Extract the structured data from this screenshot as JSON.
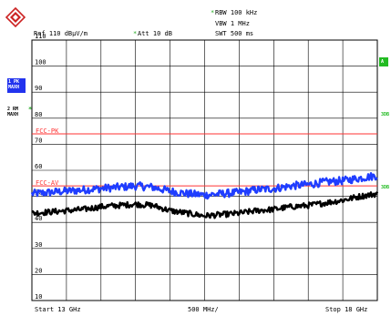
{
  "logo_text": "R&S",
  "header": {
    "rbw": "RBW 100 kHz",
    "vbw": "VBW 1 MHz",
    "swt": "SWT 500 ms",
    "ref": "Ref  110 dBµV/m",
    "att": "Att  10 dB",
    "rbw_marker": "*",
    "att_marker": "*"
  },
  "side": {
    "trace1_box": "1 PK MAXH",
    "trace2_label": "2 RM MAXH",
    "trace2_star": "*",
    "right_a": "A",
    "right_3db": "3DB",
    "right_3db_2": "3DB"
  },
  "footer": {
    "start": "Start 13 GHz",
    "span": "500 MHz/",
    "stop": "Stop 18 GHz"
  },
  "chart_data": {
    "type": "line",
    "title": "",
    "xlabel": "",
    "ylabel": "",
    "xlim": [
      13,
      18
    ],
    "ylim": [
      10,
      110
    ],
    "x_unit": "GHz",
    "y_unit": "dBµV/m",
    "grid": true,
    "ytick_labels": [
      "110",
      "100",
      "90",
      "80",
      "70",
      "60",
      "50",
      "40",
      "30",
      "20",
      "10"
    ],
    "limit_lines": [
      {
        "name": "FCC-PK",
        "value": 74,
        "color": "#ff3333"
      },
      {
        "name": "FCC-AV",
        "value": 54,
        "color": "#ff3333"
      }
    ],
    "series": [
      {
        "color": "#1f3dff",
        "x": [
          13.0,
          13.25,
          13.5,
          13.75,
          14.0,
          14.25,
          14.5,
          14.75,
          15.0,
          15.25,
          15.5,
          15.75,
          16.0,
          16.25,
          16.5,
          16.75,
          17.0,
          17.25,
          17.5,
          17.75,
          18.0
        ],
        "values": [
          51,
          51.5,
          52,
          52.5,
          53,
          53.5,
          54,
          53.5,
          52,
          51,
          50.5,
          51,
          51.5,
          52.5,
          53,
          54,
          54.5,
          55.5,
          56,
          57,
          58
        ]
      },
      {
        "color": "#000000",
        "x": [
          13.0,
          13.25,
          13.5,
          13.75,
          14.0,
          14.25,
          14.5,
          14.75,
          15.0,
          15.25,
          15.5,
          15.75,
          16.0,
          16.25,
          16.5,
          16.75,
          17.0,
          17.25,
          17.5,
          17.75,
          18.0
        ],
        "values": [
          43.5,
          44,
          44.5,
          45,
          46,
          46.5,
          47,
          46.5,
          44.5,
          43.5,
          42.5,
          43,
          43.5,
          44.5,
          45,
          46,
          46.5,
          47.5,
          48.5,
          50,
          51
        ]
      }
    ]
  }
}
